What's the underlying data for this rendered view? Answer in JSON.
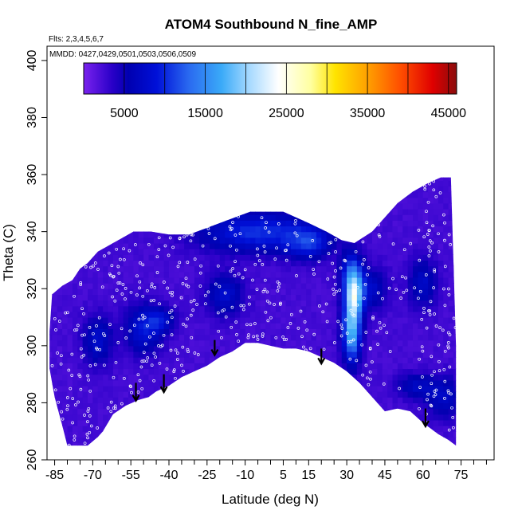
{
  "chart_data": {
    "type": "heatmap",
    "title": "ATOM4 Southbound N_fine_AMP",
    "xlabel": "Latitude (deg N)",
    "ylabel": "Theta (C)",
    "xlim": [
      -88,
      88
    ],
    "ylim": [
      260,
      405
    ],
    "x_ticks": [
      -85,
      -70,
      -55,
      -40,
      -25,
      -10,
      5,
      15,
      30,
      45,
      60,
      75
    ],
    "x_minor_ticks": [
      -80,
      -75,
      -65,
      -60,
      -50,
      -45,
      -35,
      -30,
      -20,
      -15,
      -5,
      0,
      10,
      20,
      25,
      35,
      40,
      50,
      55,
      65,
      70,
      80,
      85
    ],
    "y_ticks": [
      260,
      280,
      300,
      320,
      340,
      360,
      380,
      400
    ],
    "annotations": {
      "flights": "Flts: 2,3,4,5,6,7",
      "dates": "MMDD: 0427,0429,0501,0503,0506,0509"
    },
    "colorbar": {
      "range": [
        0,
        46000
      ],
      "tick_values": [
        5000,
        15000,
        25000,
        35000,
        45000
      ],
      "tick_labels": [
        "5000",
        "15000",
        "25000",
        "35000",
        "45000"
      ],
      "divisions": [
        5000,
        10000,
        15000,
        20000,
        25000,
        30000,
        35000,
        40000,
        45000
      ],
      "color_stops": [
        {
          "v": 0,
          "c": "#7a22ee"
        },
        {
          "v": 3500,
          "c": "#2a00c8"
        },
        {
          "v": 5500,
          "c": "#0000b0"
        },
        {
          "v": 9000,
          "c": "#0010d8"
        },
        {
          "v": 13000,
          "c": "#2a6af0"
        },
        {
          "v": 17000,
          "c": "#3aaaf8"
        },
        {
          "v": 20500,
          "c": "#a8daff"
        },
        {
          "v": 24000,
          "c": "#ffffff"
        },
        {
          "v": 28000,
          "c": "#ffffa0"
        },
        {
          "v": 31000,
          "c": "#ffe400"
        },
        {
          "v": 35000,
          "c": "#ffa000"
        },
        {
          "v": 39000,
          "c": "#ff5000"
        },
        {
          "v": 43000,
          "c": "#e00000"
        },
        {
          "v": 46000,
          "c": "#8a0c0c"
        }
      ]
    },
    "upper_boundary": [
      [
        -86,
        318
      ],
      [
        -82,
        321
      ],
      [
        -78,
        323
      ],
      [
        -75,
        327
      ],
      [
        -72,
        329
      ],
      [
        -68,
        333
      ],
      [
        -62,
        336
      ],
      [
        -58,
        338
      ],
      [
        -54,
        340
      ],
      [
        -47,
        340
      ],
      [
        -40,
        339
      ],
      [
        -32,
        339
      ],
      [
        -26,
        341
      ],
      [
        -20,
        343
      ],
      [
        -14,
        345
      ],
      [
        -8,
        347
      ],
      [
        -2,
        347
      ],
      [
        5,
        347
      ],
      [
        10,
        345
      ],
      [
        15,
        343
      ],
      [
        22,
        340
      ],
      [
        28,
        337
      ],
      [
        33,
        336
      ],
      [
        40,
        340
      ],
      [
        45,
        345
      ],
      [
        50,
        350
      ],
      [
        56,
        354
      ],
      [
        62,
        357
      ],
      [
        67,
        359
      ],
      [
        71,
        359
      ],
      [
        73,
        300
      ],
      [
        73,
        265
      ]
    ],
    "lower_boundary": [
      [
        73,
        265
      ],
      [
        70,
        267
      ],
      [
        66,
        269
      ],
      [
        60,
        273
      ],
      [
        55,
        277
      ],
      [
        50,
        278
      ],
      [
        45,
        277
      ],
      [
        40,
        282
      ],
      [
        35,
        287
      ],
      [
        30,
        291
      ],
      [
        25,
        294
      ],
      [
        20,
        296
      ],
      [
        15,
        298
      ],
      [
        10,
        299
      ],
      [
        5,
        299
      ],
      [
        0,
        300
      ],
      [
        -5,
        301
      ],
      [
        -10,
        301
      ],
      [
        -15,
        298
      ],
      [
        -20,
        296
      ],
      [
        -25,
        293
      ],
      [
        -30,
        291
      ],
      [
        -35,
        289
      ],
      [
        -40,
        286
      ],
      [
        -45,
        284
      ],
      [
        -48,
        282
      ],
      [
        -52,
        281
      ],
      [
        -57,
        279
      ],
      [
        -62,
        276
      ],
      [
        -66,
        270
      ],
      [
        -68,
        268
      ],
      [
        -72,
        265
      ],
      [
        -80,
        265
      ],
      [
        -82,
        272
      ],
      [
        -85,
        282
      ],
      [
        -87,
        292
      ],
      [
        -87,
        305
      ]
    ],
    "background_value": 2000,
    "hotspots": [
      {
        "lat": 32,
        "theta": 306,
        "sx": 2.5,
        "sy": 8,
        "value": 16000
      },
      {
        "lat": 33,
        "theta": 318,
        "sx": 2.5,
        "sy": 5,
        "value": 14000
      },
      {
        "lat": 32,
        "theta": 326,
        "sx": 3,
        "sy": 5,
        "value": 9000
      },
      {
        "lat": -5,
        "theta": 340,
        "sx": 16,
        "sy": 5,
        "value": 8000
      },
      {
        "lat": 15,
        "theta": 336,
        "sx": 6,
        "sy": 4,
        "value": 6500
      },
      {
        "lat": -50,
        "theta": 306,
        "sx": 5,
        "sy": 6,
        "value": 6500
      },
      {
        "lat": -68,
        "theta": 302,
        "sx": 4,
        "sy": 6,
        "value": 5500
      },
      {
        "lat": -18,
        "theta": 318,
        "sx": 5,
        "sy": 5,
        "value": 5500
      },
      {
        "lat": -43,
        "theta": 309,
        "sx": 4,
        "sy": 3,
        "value": 5000
      },
      {
        "lat": 40,
        "theta": 320,
        "sx": 4,
        "sy": 5,
        "value": 5000
      },
      {
        "lat": 60,
        "theta": 322,
        "sx": 4,
        "sy": 6,
        "value": 5000
      },
      {
        "lat": 68,
        "theta": 282,
        "sx": 5,
        "sy": 5,
        "value": 5000
      },
      {
        "lat": 57,
        "theta": 286,
        "sx": 5,
        "sy": 3,
        "value": 4500
      }
    ],
    "arrows": [
      {
        "lat": -53,
        "theta_top": 287,
        "theta_bottom": 281
      },
      {
        "lat": -42,
        "theta_top": 290,
        "theta_bottom": 284
      },
      {
        "lat": -22,
        "theta_top": 302,
        "theta_bottom": 297
      },
      {
        "lat": 20,
        "theta_top": 299,
        "theta_bottom": 294
      },
      {
        "lat": 61,
        "theta_top": 278,
        "theta_bottom": 272
      }
    ]
  }
}
